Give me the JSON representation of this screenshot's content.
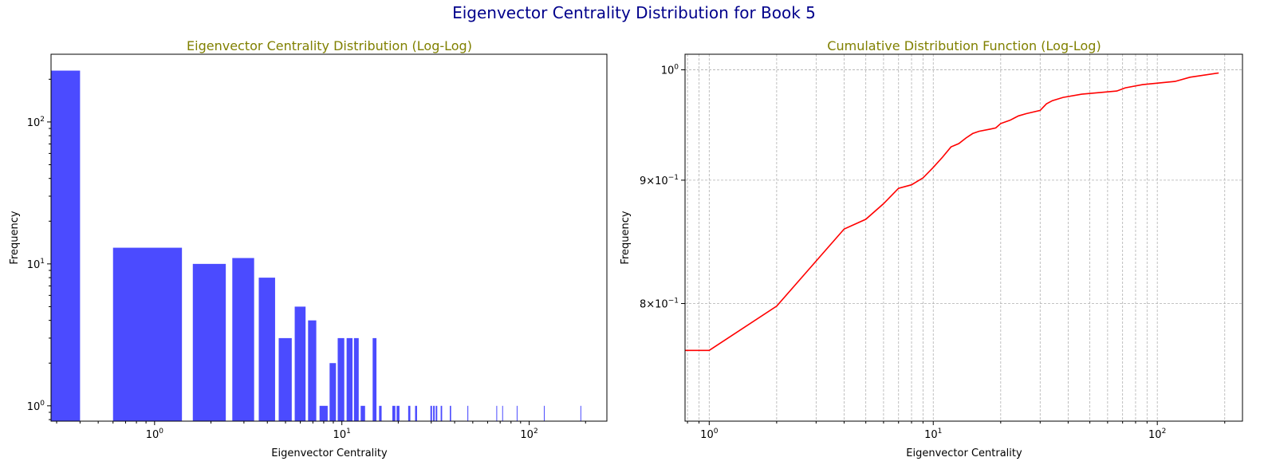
{
  "figure": {
    "title": "Eigenvector Centrality Distribution for Book 5",
    "title_color": "#00008b"
  },
  "colors": {
    "panel_title": "#808000",
    "bar_fill": "#4b4bff",
    "line": "#ff0000",
    "grid": "#b0b0b0"
  },
  "chart_data": [
    {
      "type": "bar",
      "title": "Eigenvector Centrality Distribution (Log-Log)",
      "xlabel": "Eigenvector Centrality",
      "ylabel": "Frequency",
      "xscale": "log",
      "yscale": "log",
      "xlim": [
        0.28,
        260
      ],
      "ylim": [
        0.78,
        300
      ],
      "grid": false,
      "x_ticks": [
        {
          "value": 1,
          "label": "10",
          "exp": "0"
        },
        {
          "value": 10,
          "label": "10",
          "exp": "1"
        },
        {
          "value": 100,
          "label": "10",
          "exp": "2"
        }
      ],
      "y_ticks": [
        {
          "value": 1,
          "label": "10",
          "exp": "0"
        },
        {
          "value": 10,
          "label": "10",
          "exp": "1"
        },
        {
          "value": 100,
          "label": "10",
          "exp": "2"
        }
      ],
      "bars": [
        {
          "x0": 0.28,
          "x1": 0.4,
          "value": 230
        },
        {
          "x0": 0.6,
          "x1": 1.4,
          "value": 13
        },
        {
          "x0": 1.6,
          "x1": 2.4,
          "value": 10
        },
        {
          "x0": 2.6,
          "x1": 3.4,
          "value": 11
        },
        {
          "x0": 3.6,
          "x1": 4.4,
          "value": 8
        },
        {
          "x0": 4.6,
          "x1": 5.4,
          "value": 3
        },
        {
          "x0": 5.6,
          "x1": 6.4,
          "value": 5
        },
        {
          "x0": 6.6,
          "x1": 7.3,
          "value": 4
        },
        {
          "x0": 7.6,
          "x1": 8.4,
          "value": 1
        },
        {
          "x0": 8.6,
          "x1": 9.3,
          "value": 2
        },
        {
          "x0": 9.5,
          "x1": 10.3,
          "value": 3
        },
        {
          "x0": 10.6,
          "x1": 11.4,
          "value": 3
        },
        {
          "x0": 11.6,
          "x1": 12.3,
          "value": 3
        },
        {
          "x0": 12.6,
          "x1": 13.3,
          "value": 1
        },
        {
          "x0": 14.6,
          "x1": 15.3,
          "value": 3
        },
        {
          "x0": 15.8,
          "x1": 16.3,
          "value": 1
        },
        {
          "x0": 18.6,
          "x1": 19.3,
          "value": 1
        },
        {
          "x0": 19.6,
          "x1": 20.3,
          "value": 1
        },
        {
          "x0": 22.6,
          "x1": 23.2,
          "value": 1
        },
        {
          "x0": 24.6,
          "x1": 25.2,
          "value": 1
        },
        {
          "x0": 29.7,
          "x1": 30.3,
          "value": 1
        },
        {
          "x0": 30.7,
          "x1": 31.3,
          "value": 1
        },
        {
          "x0": 31.7,
          "x1": 32.3,
          "value": 1
        },
        {
          "x0": 33.7,
          "x1": 34.3,
          "value": 1
        },
        {
          "x0": 37.7,
          "x1": 38.3,
          "value": 1
        },
        {
          "x0": 46.8,
          "x1": 47.3,
          "value": 1
        },
        {
          "x0": 66.8,
          "x1": 67.3,
          "value": 1
        },
        {
          "x0": 71.8,
          "x1": 72.3,
          "value": 1
        },
        {
          "x0": 85.8,
          "x1": 86.4,
          "value": 1
        },
        {
          "x0": 119.8,
          "x1": 120.4,
          "value": 1
        },
        {
          "x0": 187.8,
          "x1": 188.5,
          "value": 1
        }
      ]
    },
    {
      "type": "line",
      "title": "Cumulative Distribution Function (Log-Log)",
      "xlabel": "Eigenvector Centrality",
      "ylabel": "Frequency",
      "xscale": "log",
      "yscale": "log",
      "xlim": [
        0.78,
        240
      ],
      "ylim": [
        0.715,
        1.015
      ],
      "grid": true,
      "x_ticks": [
        {
          "value": 1,
          "label": "10",
          "exp": "0"
        },
        {
          "value": 10,
          "label": "10",
          "exp": "1"
        },
        {
          "value": 100,
          "label": "10",
          "exp": "2"
        }
      ],
      "y_ticks": [
        {
          "value": 0.8,
          "label": "8×10",
          "exp": "−1"
        },
        {
          "value": 0.9,
          "label": "9×10",
          "exp": "−1"
        },
        {
          "value": 1.0,
          "label": "10",
          "exp": "0"
        }
      ],
      "x": [
        0.7,
        1,
        2,
        4,
        5,
        6,
        7,
        8,
        9,
        10,
        11,
        12,
        13,
        14,
        15,
        16,
        18,
        19,
        20,
        22,
        24,
        26,
        30,
        32,
        34,
        38,
        46,
        66,
        72,
        86,
        120,
        140,
        188
      ],
      "values": [
        0.765,
        0.765,
        0.798,
        0.859,
        0.867,
        0.88,
        0.893,
        0.896,
        0.902,
        0.911,
        0.92,
        0.929,
        0.932,
        0.937,
        0.941,
        0.943,
        0.945,
        0.946,
        0.95,
        0.953,
        0.957,
        0.959,
        0.962,
        0.968,
        0.971,
        0.974,
        0.977,
        0.98,
        0.983,
        0.986,
        0.989,
        0.993,
        0.997
      ]
    }
  ]
}
